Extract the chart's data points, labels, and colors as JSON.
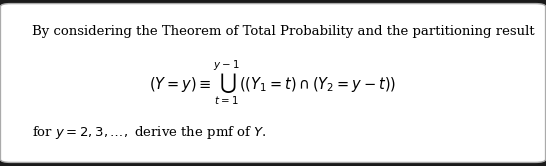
{
  "background_color": "#ffffff",
  "outer_bg": "#1a1a1a",
  "box_edge_color": "#aaaaaa",
  "text_color": "#000000",
  "fig_width": 5.46,
  "fig_height": 1.66,
  "dpi": 100,
  "line1": "By considering the Theorem of Total Probability and the partitioning result",
  "line2_latex": "$(Y = y) \\equiv \\bigcup_{t=1}^{y-1} ((Y_1 = t) \\cap (Y_2 = y - t))$",
  "line3": "for $y = 2, 3, \\ldots,$ derive the pmf of $Y$.",
  "font_size_line1": 9.5,
  "font_size_line2": 10.5,
  "font_size_line3": 9.5
}
